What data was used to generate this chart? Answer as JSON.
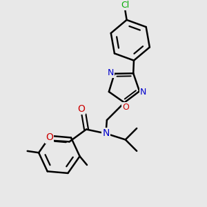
{
  "background_color": "#e8e8e8",
  "line_color": "#000000",
  "bond_width": 1.8,
  "N_color": "#0000cc",
  "O_color": "#cc0000",
  "Cl_color": "#00aa00",
  "figsize": [
    3.0,
    3.0
  ],
  "dpi": 100,
  "xlim": [
    0.0,
    10.0
  ],
  "ylim": [
    0.0,
    10.0
  ]
}
